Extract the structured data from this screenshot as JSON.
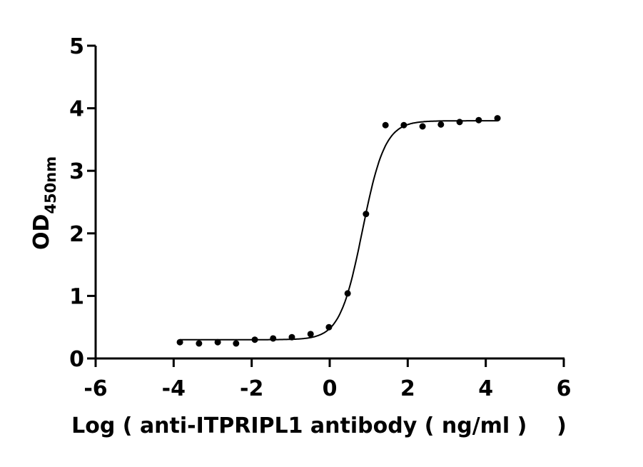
{
  "chart_data": {
    "type": "scatter",
    "title": "",
    "xlabel": "Log ( anti-ITPRIPL1 antibody ( ng/ml )    )",
    "ylabel": "OD",
    "ylabel_subscript": "450nm",
    "xlim": [
      -6,
      6
    ],
    "ylim": [
      0,
      5
    ],
    "xticks": [
      "-6",
      "-4",
      "-2",
      "0",
      "2",
      "4",
      "6"
    ],
    "yticks": [
      "0",
      "1",
      "2",
      "3",
      "4",
      "5"
    ],
    "grid": false,
    "legend": "none",
    "x": [
      -3.84,
      -3.35,
      -2.87,
      -2.4,
      -1.92,
      -1.45,
      -0.97,
      -0.49,
      -0.02,
      0.46,
      0.93,
      1.43,
      1.9,
      2.38,
      2.85,
      3.33,
      3.82,
      4.3
    ],
    "y": [
      0.26,
      0.24,
      0.26,
      0.24,
      0.3,
      0.32,
      0.34,
      0.39,
      0.5,
      1.04,
      2.31,
      3.73,
      3.73,
      3.71,
      3.74,
      3.78,
      3.81,
      3.84
    ],
    "fit": {
      "model": "four-parameter logistic",
      "bottom": 0.3,
      "top": 3.8,
      "logEC50": 0.84,
      "hill_slope": 1.51
    },
    "colors": {
      "points": "#000000",
      "line": "#000000"
    }
  }
}
